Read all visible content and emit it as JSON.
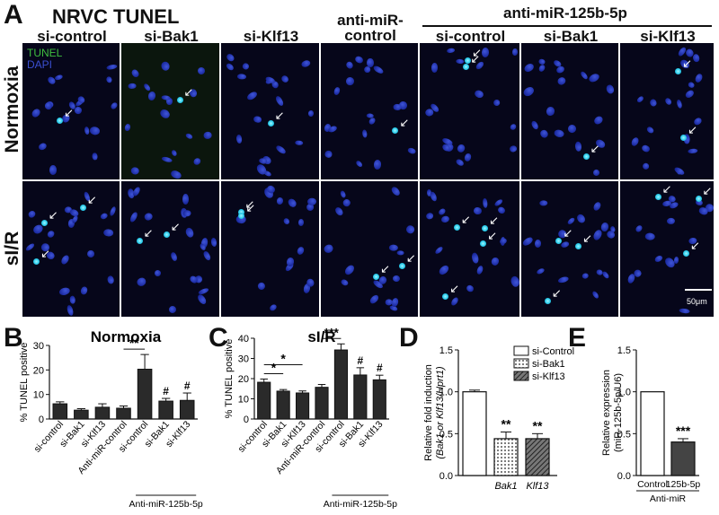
{
  "panel_a": {
    "letter": "A",
    "title": "NRVC TUNEL",
    "group_label": "anti-miR-125b-5p",
    "column_labels": [
      "si-control",
      "si-Bak1",
      "si-Klf13",
      "anti-miR-\ncontrol",
      "si-control",
      "si-Bak1",
      "si-Klf13"
    ],
    "row_labels": [
      "Normoxia",
      "sI/R"
    ],
    "legend_tunel": "TUNEL",
    "legend_dapi": "DAPI",
    "scale_bar": "50μm"
  },
  "colors": {
    "tunel_green": "#3fbf3f",
    "dapi_blue": "#3a4fd0",
    "bar_dark": "#2a2a2a"
  },
  "chart_data": [
    {
      "panel": "B",
      "type": "bar",
      "title": "Normoxia",
      "ylabel": "% TUNEL positive",
      "ylim": [
        0,
        30
      ],
      "yticks": [
        0,
        10,
        20,
        30
      ],
      "categories": [
        "si-control",
        "si-Bak1",
        "si-Klf13",
        "Anti-miR-control",
        "si-control",
        "si-Bak1",
        "si-Klf13"
      ],
      "values": [
        6.2,
        3.6,
        4.8,
        4.4,
        20.3,
        7.3,
        7.6
      ],
      "errors": [
        0.8,
        0.6,
        1.4,
        0.9,
        6.0,
        1.1,
        3.0
      ],
      "group_label": "Anti-miR-125b-5p",
      "significance": [
        {
          "label": "**",
          "from": 3,
          "to": 4
        },
        {
          "label": "#",
          "at": 5
        },
        {
          "label": "#",
          "at": 6
        }
      ]
    },
    {
      "panel": "C",
      "type": "bar",
      "title": "sI/R",
      "ylabel": "% TUNEL positive",
      "ylim": [
        0,
        40
      ],
      "yticks": [
        0,
        10,
        20,
        30,
        40
      ],
      "categories": [
        "si-control",
        "si-Bak1",
        "si-Klf13",
        "Anti-miR-control",
        "si-control",
        "si-Bak1",
        "si-Klf13"
      ],
      "values": [
        18.2,
        13.8,
        12.9,
        15.7,
        34.2,
        21.8,
        19.4
      ],
      "errors": [
        1.6,
        0.8,
        1.0,
        1.4,
        3.0,
        3.6,
        2.3
      ],
      "group_label": "Anti-miR-125b-5p",
      "significance": [
        {
          "label": "*",
          "from": 0,
          "to": 1
        },
        {
          "label": "*",
          "from": 0,
          "to": 2
        },
        {
          "label": "***",
          "from": 3,
          "to": 4
        },
        {
          "label": "#",
          "at": 5
        },
        {
          "label": "#",
          "at": 6
        }
      ]
    },
    {
      "panel": "D",
      "type": "bar",
      "ylabel_line1": "Relative fold induction",
      "ylabel_line2": "(Bak1 or Klf13/Hprt1)",
      "ylim": [
        0,
        1.5
      ],
      "yticks": [
        0.0,
        0.5,
        1.0,
        1.5
      ],
      "ytick_labels": [
        "0.0",
        "0.5",
        "1.0",
        "1.5"
      ],
      "categories": [
        "",
        "Bak1",
        "Klf13"
      ],
      "series": [
        {
          "name": "si-Control",
          "values": [
            1.0,
            null,
            null
          ],
          "errors": [
            0.02,
            null,
            null
          ]
        },
        {
          "name": "si-Bak1",
          "values": [
            null,
            0.44,
            null
          ],
          "errors": [
            null,
            0.08,
            null
          ]
        },
        {
          "name": "si-Klf13",
          "values": [
            null,
            null,
            0.44
          ],
          "errors": [
            null,
            null,
            0.06
          ]
        }
      ],
      "significance": [
        {
          "label": "**",
          "at": 1
        },
        {
          "label": "**",
          "at": 2
        }
      ],
      "legend": "right"
    },
    {
      "panel": "E",
      "type": "bar",
      "ylabel_line1": "Relative expression",
      "ylabel_line2": "(miR-125b-5p/U6)",
      "ylim": [
        0,
        1.5
      ],
      "yticks": [
        0.0,
        0.5,
        1.0,
        1.5
      ],
      "ytick_labels": [
        "0.0",
        "0.5",
        "1.0",
        "1.5"
      ],
      "categories": [
        "Control",
        "125b-5p"
      ],
      "values": [
        1.0,
        0.4
      ],
      "errors": [
        0.0,
        0.04
      ],
      "group_label": "Anti-miR",
      "significance": [
        {
          "label": "***",
          "at": 1
        }
      ]
    }
  ]
}
